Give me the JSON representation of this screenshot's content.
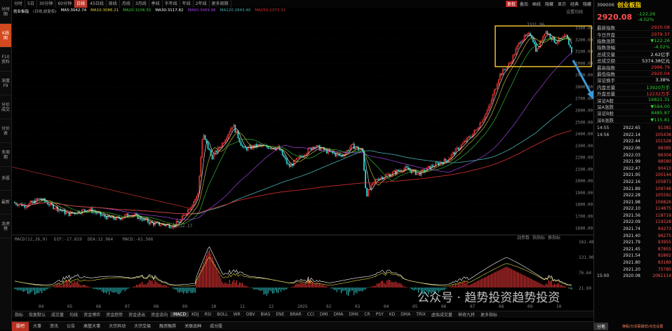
{
  "left_nav": [
    "分时图",
    "K线图",
    "F10资料",
    "深度F9",
    "分价成交",
    "分价表",
    "多周期",
    "多股",
    "最新",
    "龙虎榜"
  ],
  "period_tabs": [
    "分时",
    "5日",
    "30分钟",
    "60分钟",
    "日线",
    "45日线",
    "周线",
    "月线",
    "3月线",
    "季线",
    "半年线",
    "年线",
    "2年线",
    "更多周期"
  ],
  "toolbar": [
    "复权",
    "叠加",
    "画线",
    "隐藏",
    "显示",
    "经典",
    "隐藏"
  ],
  "info_items": [
    {
      "t": "创业板指",
      "c": "#ffffff"
    },
    {
      "t": "(日线,前复权)",
      "c": "#aaaaaa"
    },
    {
      "t": "MA5:3042.74",
      "c": "#ffffff"
    },
    {
      "t": "MA10:3086.21",
      "c": "#e0d23c"
    },
    {
      "t": "MA20:3156.55",
      "c": "#3cd23c"
    },
    {
      "t": "MA30:3117.82",
      "c": "#ffffff"
    },
    {
      "t": "MA60:3069.96",
      "c": "#a040e0"
    },
    {
      "t": "MA120:2843.40",
      "c": "#4ab0b0"
    },
    {
      "t": "MA250:2373.31",
      "c": "#e03030"
    }
  ],
  "settings_label": "设置均线",
  "y_ticks": [
    "3300.00",
    "3200.00",
    "3100.00",
    "3000.00",
    "2900.00",
    "2800.00",
    "2700.00",
    "2600.00",
    "2500.00",
    "2400.00",
    "2300.00",
    "2200.00",
    "2100.00",
    "2000.00",
    "1900.00",
    "1800.00",
    "1700.00",
    "1600.00"
  ],
  "annotations": {
    "high": "3331.96",
    "low": "1612.17"
  },
  "macd_label": "MACD(12,26,9)",
  "macd_values": {
    "dif": "DIF:-17.819",
    "dea": "DEA:12.964",
    "macd": "MACD:-61.566"
  },
  "macd_ticks": [
    "162.48",
    "131.90",
    "76.64",
    "21.69"
  ],
  "macd_tools": [
    "战参数",
    "指指标",
    "换指标"
  ],
  "x_ticks": [
    "04",
    "05",
    "06",
    "07",
    "08",
    "09",
    "10",
    "11",
    "12",
    "2025",
    "02",
    "03",
    "04",
    "05",
    "06",
    "07",
    "08",
    "09",
    "10"
  ],
  "bottom_tabs": [
    "指标",
    "恢复默认",
    "成交量",
    "均线",
    "资金博弈",
    "资金趋势",
    "资金进出",
    "资金流向",
    "MACD",
    "KDJ",
    "RSI",
    "BOLL",
    "WR",
    "OBV",
    "BIAS",
    "ENE",
    "BRAR",
    "CCI",
    "DMI",
    "DMA",
    "DMX",
    "CR",
    "PSY",
    "KD",
    "DMA",
    "TRIX",
    "虚拟成交量",
    "神奇九转",
    "更多指标"
  ],
  "bottom_tabs2": [
    "股吧",
    "大事",
    "资讯",
    "公告",
    "高管大事",
    "大宗异动",
    "大宗交易",
    "融资融券",
    "关联品种",
    "成分股"
  ],
  "watermark": "公众号 · 趋势投资趋势投资",
  "rp": {
    "code": "399006",
    "name": "创业板指",
    "price": "2920.08",
    "chg": "-122.26",
    "pct": "-4.02%",
    "rows": [
      {
        "k": "最新指数",
        "v": "2920.08",
        "c": "#ff4040"
      },
      {
        "k": "今日开盘",
        "v": "2979.37",
        "c": "#ff4040"
      },
      {
        "k": "指数涨跌",
        "v": "▼122.26",
        "c": "#30d030"
      },
      {
        "k": "指数涨幅",
        "v": "-4.02%",
        "c": "#30d030"
      },
      {
        "k": "总成交量",
        "v": "2.62亿手",
        "c": "#e8e8e8"
      },
      {
        "k": "总成交额",
        "v": "5374.38亿元",
        "c": "#e8e8e8"
      },
      {
        "k": "最高指数",
        "v": "2996.79",
        "c": "#ff4040"
      },
      {
        "k": "最低指数",
        "v": "2920.04",
        "c": "#ff4040"
      },
      {
        "k": "深证换手",
        "v": "3.38%",
        "c": "#e8e8e8"
      },
      {
        "k": "内盘总量",
        "v": "13920万手",
        "c": "#30d030"
      },
      {
        "k": "外盘总量",
        "v": "12232万手",
        "c": "#ff4040"
      },
      {
        "k": "深证A股",
        "v": "16821.31",
        "c": "#30d030"
      },
      {
        "k": "深A涨跌",
        "v": "▼594.00",
        "c": "#30d030"
      },
      {
        "k": "深证B股",
        "v": "8485.87",
        "c": "#30d030"
      },
      {
        "k": "深B涨跌",
        "v": "▼115.81",
        "c": "#30d030"
      }
    ],
    "ticks": [
      {
        "t": "14:55",
        "p": "2922.65",
        "v": "91381"
      },
      {
        "t": "14:56",
        "p": "2922.14",
        "v": "105438"
      },
      {
        "t": "",
        "p": "2922.44",
        "v": "101528"
      },
      {
        "t": "",
        "p": "2922.06",
        "v": "98385"
      },
      {
        "t": "",
        "p": "2922.03",
        "v": "96304"
      },
      {
        "t": "",
        "p": "2921.99",
        "v": "98580"
      },
      {
        "t": "",
        "p": "2922.47",
        "v": "90413"
      },
      {
        "t": "",
        "p": "2921.95",
        "v": "100144"
      },
      {
        "t": "",
        "p": "2922.16",
        "v": "105871"
      },
      {
        "t": "",
        "p": "2921.89",
        "v": "109748"
      },
      {
        "t": "",
        "p": "2922.28",
        "v": "105591"
      },
      {
        "t": "",
        "p": "2921.98",
        "v": "106826"
      },
      {
        "t": "",
        "p": "2922.10",
        "v": "114875"
      },
      {
        "t": "",
        "p": "2921.56",
        "v": "118719"
      },
      {
        "t": "",
        "p": "2922.09",
        "v": "119328"
      },
      {
        "t": "",
        "p": "2921.74",
        "v": "94273"
      },
      {
        "t": "",
        "p": "2921.40",
        "v": "96275"
      },
      {
        "t": "",
        "p": "2921.79",
        "v": "93955"
      },
      {
        "t": "",
        "p": "2921.45",
        "v": "87855"
      },
      {
        "t": "",
        "p": "2921.54",
        "v": "92862"
      },
      {
        "t": "",
        "p": "2921.80",
        "v": "83189"
      },
      {
        "t": "",
        "p": "2921.20",
        "v": "75780"
      },
      {
        "t": "15:00",
        "p": "2920.08",
        "v": "2061114"
      }
    ],
    "bottom_label": "分笔",
    "bottom_link": "换股/分关联最低/点击设置"
  }
}
